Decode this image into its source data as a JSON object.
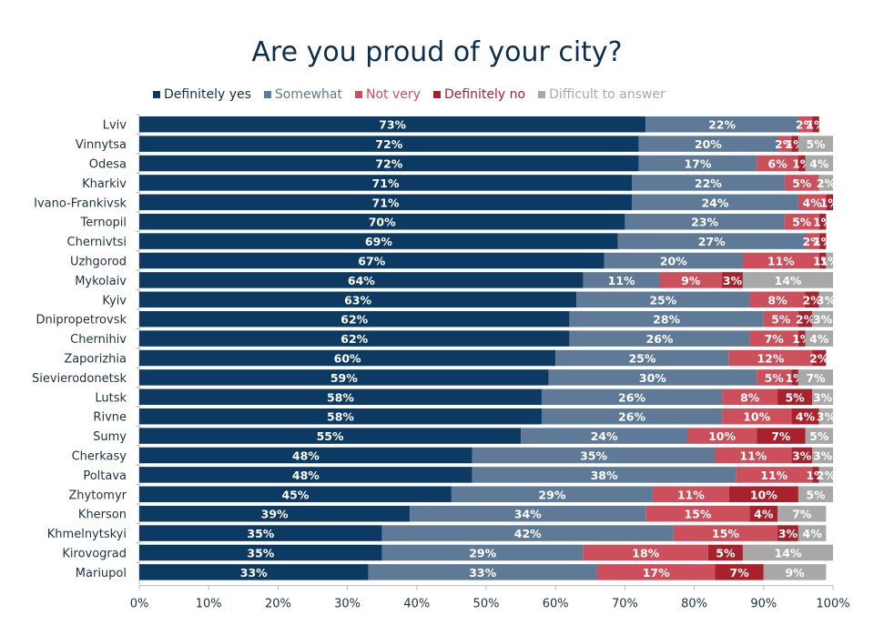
{
  "colors": {
    "definitely_yes": "#0d3a62",
    "somewhat": "#5e7a96",
    "not_very": "#cc4f5c",
    "definitely_no": "#a8222e",
    "difficult": "#a8a8a8",
    "title": "#0d2f4f",
    "axis_text": "#1f2f3f"
  },
  "chart_data": {
    "type": "bar",
    "orientation": "horizontal",
    "stacked": true,
    "title": "Are you proud of your city?",
    "xlabel": "",
    "ylabel": "",
    "xlim": [
      0,
      100
    ],
    "x_ticks": [
      "0%",
      "10%",
      "20%",
      "30%",
      "40%",
      "50%",
      "60%",
      "70%",
      "80%",
      "90%",
      "100%"
    ],
    "legend_position": "top",
    "grid": false,
    "categories": [
      "Lviv",
      "Vinnytsa",
      "Odesa",
      "Kharkiv",
      "Ivano-Frankivsk",
      "Ternopil",
      "Chernivtsi",
      "Uzhgorod",
      "Mykolaiv",
      "Kyiv",
      "Dnipropetrovsk",
      "Chernihiv",
      "Zaporizhia",
      "Sievierodonetsk",
      "Lutsk",
      "Rivne",
      "Sumy",
      "Cherkasy",
      "Poltava",
      "Zhytomyr",
      "Kherson",
      "Khmelnytskyi",
      "Kirovograd",
      "Mariupol"
    ],
    "series": [
      {
        "name": "Definitely yes",
        "key": "definitely_yes",
        "values": [
          73,
          72,
          72,
          71,
          71,
          70,
          69,
          67,
          64,
          63,
          62,
          62,
          60,
          59,
          58,
          58,
          55,
          48,
          48,
          45,
          39,
          35,
          35,
          33
        ]
      },
      {
        "name": "Somewhat",
        "key": "somewhat",
        "values": [
          22,
          20,
          17,
          22,
          24,
          23,
          27,
          20,
          11,
          25,
          28,
          26,
          25,
          30,
          26,
          26,
          24,
          35,
          38,
          29,
          34,
          42,
          29,
          33
        ]
      },
      {
        "name": "Not very",
        "key": "not_very",
        "values": [
          2,
          2,
          6,
          5,
          4,
          5,
          2,
          11,
          9,
          8,
          5,
          7,
          12,
          5,
          8,
          10,
          10,
          11,
          11,
          11,
          15,
          15,
          18,
          17
        ]
      },
      {
        "name": "Definitely no",
        "key": "definitely_no",
        "values": [
          1,
          1,
          1,
          0,
          1,
          1,
          1,
          1,
          3,
          2,
          2,
          1,
          2,
          1,
          5,
          4,
          7,
          3,
          1,
          10,
          4,
          3,
          5,
          7
        ]
      },
      {
        "name": "Difficult to answer",
        "key": "difficult",
        "values": [
          0,
          5,
          4,
          2,
          0,
          0,
          0,
          1,
          14,
          3,
          3,
          4,
          0,
          7,
          3,
          3,
          5,
          3,
          2,
          5,
          7,
          4,
          14,
          9
        ]
      }
    ]
  }
}
